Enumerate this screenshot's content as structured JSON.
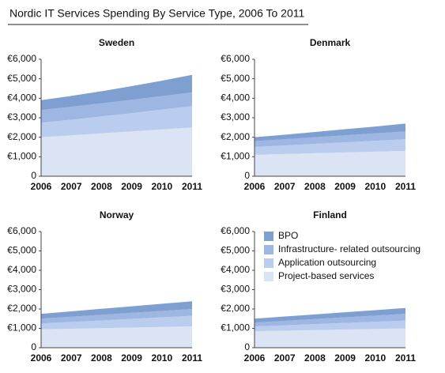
{
  "title": "Nordic IT Services Spending By Service Type, 2006 To 2011",
  "legend": [
    {
      "name": "BPO",
      "color": "#7f9fd1"
    },
    {
      "name": "Infrastructure- related outsourcing",
      "color": "#9db6e2"
    },
    {
      "name": "Application outsourcing",
      "color": "#bacdee"
    },
    {
      "name": "Project-based services",
      "color": "#dbe4f4"
    }
  ],
  "chart_data": [
    {
      "type": "stacked_area",
      "title": "Sweden",
      "categories": [
        "2006",
        "2007",
        "2008",
        "2009",
        "2010",
        "2011"
      ],
      "ylim": [
        0,
        6000
      ],
      "yticks": [
        {
          "value": 0,
          "label": "0"
        },
        {
          "value": 1000,
          "label": "€1,000"
        },
        {
          "value": 2000,
          "label": "€2,000"
        },
        {
          "value": 3000,
          "label": "€3,000"
        },
        {
          "value": 4000,
          "label": "€4,000"
        },
        {
          "value": 5000,
          "label": "€5,000"
        },
        {
          "value": 6000,
          "label": "€6,000"
        }
      ],
      "series": [
        {
          "values": [
            500,
            560,
            620,
            700,
            790,
            900
          ]
        },
        {
          "values": [
            650,
            660,
            670,
            680,
            690,
            700
          ]
        },
        {
          "values": [
            750,
            800,
            870,
            940,
            1020,
            1100
          ]
        },
        {
          "values": [
            2000,
            2100,
            2200,
            2300,
            2400,
            2500
          ]
        }
      ]
    },
    {
      "type": "stacked_area",
      "title": "Denmark",
      "categories": [
        "2006",
        "2007",
        "2008",
        "2009",
        "2010",
        "2011"
      ],
      "ylim": [
        0,
        6000
      ],
      "yticks": [
        {
          "value": 0,
          "label": "0"
        },
        {
          "value": 1000,
          "label": "€1,000"
        },
        {
          "value": 2000,
          "label": "€2,000"
        },
        {
          "value": 3000,
          "label": "€3,000"
        },
        {
          "value": 4000,
          "label": "€4,000"
        },
        {
          "value": 5000,
          "label": "€5,000"
        },
        {
          "value": 6000,
          "label": "€6,000"
        }
      ],
      "series": [
        {
          "values": [
            200,
            230,
            270,
            310,
            350,
            400
          ]
        },
        {
          "values": [
            300,
            320,
            340,
            360,
            380,
            400
          ]
        },
        {
          "values": [
            400,
            440,
            480,
            520,
            560,
            600
          ]
        },
        {
          "values": [
            1100,
            1140,
            1180,
            1220,
            1260,
            1300
          ]
        }
      ]
    },
    {
      "type": "stacked_area",
      "title": "Norway",
      "categories": [
        "2006",
        "2007",
        "2008",
        "2009",
        "2010",
        "2011"
      ],
      "ylim": [
        0,
        6000
      ],
      "yticks": [
        {
          "value": 0,
          "label": "0"
        },
        {
          "value": 1000,
          "label": "€1,000"
        },
        {
          "value": 2000,
          "label": "€2,000"
        },
        {
          "value": 3000,
          "label": "€3,000"
        },
        {
          "value": 4000,
          "label": "€4,000"
        },
        {
          "value": 5000,
          "label": "€5,000"
        },
        {
          "value": 6000,
          "label": "€6,000"
        }
      ],
      "series": [
        {
          "values": [
            250,
            280,
            310,
            340,
            370,
            400
          ]
        },
        {
          "values": [
            250,
            270,
            290,
            310,
            330,
            350
          ]
        },
        {
          "values": [
            300,
            350,
            400,
            450,
            500,
            550
          ]
        },
        {
          "values": [
            950,
            980,
            1010,
            1040,
            1070,
            1100
          ]
        }
      ]
    },
    {
      "type": "stacked_area",
      "title": "Finland",
      "categories": [
        "2006",
        "2007",
        "2008",
        "2009",
        "2010",
        "2011"
      ],
      "ylim": [
        0,
        6000
      ],
      "yticks": [
        {
          "value": 0,
          "label": "0"
        },
        {
          "value": 1000,
          "label": "€1,000"
        },
        {
          "value": 2000,
          "label": "€2,000"
        },
        {
          "value": 3000,
          "label": "€3,000"
        },
        {
          "value": 4000,
          "label": "€4,000"
        },
        {
          "value": 5000,
          "label": "€5,000"
        },
        {
          "value": 6000,
          "label": "€6,000"
        }
      ],
      "legend_position": "upper left",
      "series": [
        {
          "values": [
            200,
            220,
            240,
            260,
            280,
            300
          ]
        },
        {
          "values": [
            200,
            230,
            260,
            290,
            320,
            350
          ]
        },
        {
          "values": [
            250,
            280,
            310,
            340,
            370,
            400
          ]
        },
        {
          "values": [
            850,
            880,
            910,
            940,
            970,
            1000
          ]
        }
      ]
    }
  ]
}
